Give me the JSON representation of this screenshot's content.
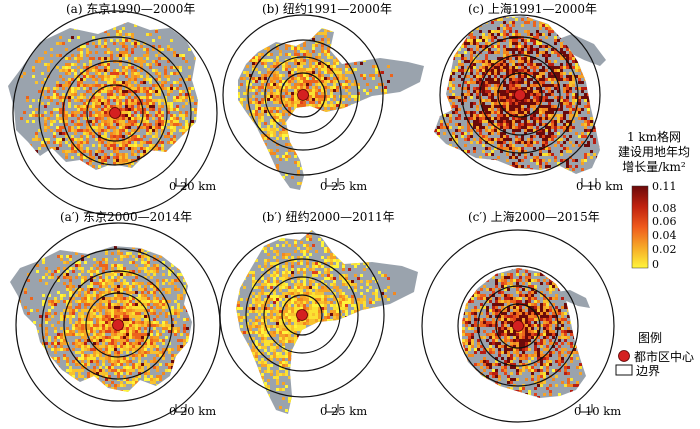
{
  "panels": [
    {
      "id": "tokyo-1990-2000",
      "title": "(a) 东京1990—2000年",
      "scale_label": "0   20 km",
      "intensity": 0.3
    },
    {
      "id": "newyork-1991-2000",
      "title": "(b) 纽约1991—2000年",
      "scale_label": "0   25 km",
      "intensity": 0.22
    },
    {
      "id": "shanghai-1991-2000",
      "title": "(c) 上海1991—2000年",
      "scale_label": "0   10 km",
      "intensity": 0.7
    },
    {
      "id": "tokyo-2000-2014",
      "title": "(a′) 东京2000—2014年",
      "scale_label": "0   20 km",
      "intensity": 0.25
    },
    {
      "id": "newyork-2000-2011",
      "title": "(b′) 纽约2000—2011年",
      "scale_label": "0   25 km",
      "intensity": 0.1
    },
    {
      "id": "shanghai-2000-2015",
      "title": "(c′) 上海2000—2015年",
      "scale_label": "0   10 km",
      "intensity": 0.55
    }
  ],
  "colorbar": {
    "title_lines": [
      "1 km格网",
      "建设用地年均",
      "增长量/km²"
    ],
    "ticks": [
      "0.11",
      "0.08",
      "0.06",
      "0.04",
      "0.02",
      "0"
    ],
    "colors": [
      "#6b0a0a",
      "#b81e12",
      "#e8471a",
      "#f3881f",
      "#f8c22e",
      "#fff53b"
    ]
  },
  "legend": {
    "title": "图例",
    "center_label": "都市区中心",
    "boundary_label": "边界",
    "center_color": "#d42020",
    "boundary_color": "#ffffff"
  },
  "colors": {
    "background_area": "#9aa3ad",
    "ring_stroke": "#111111"
  }
}
